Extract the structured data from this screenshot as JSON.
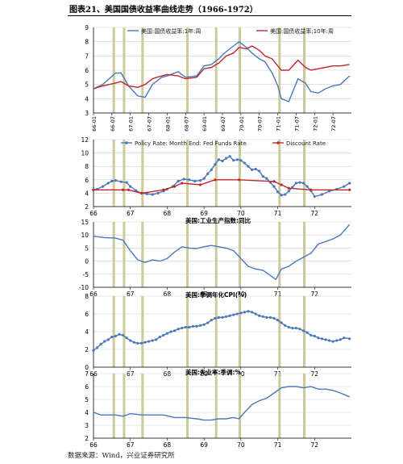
{
  "title": "图表21、美国国债收益率曲线走势（1966-1972）",
  "source": "数据来源：Wind，兴业证券研究所",
  "colors": {
    "blue": "#4a78b8",
    "red": "#c0272d",
    "band": "#c9c38f",
    "grid": "#cfcfcf"
  },
  "chart_data": [
    {
      "type": "line",
      "title": "",
      "ylim": [
        3,
        9
      ],
      "yticks": [
        "3",
        "4",
        "5",
        "6",
        "7",
        "8",
        "9"
      ],
      "xticks": [
        "66-01",
        "66-07",
        "67-01",
        "67-07",
        "68-01",
        "68-07",
        "69-01",
        "69-07",
        "70-01",
        "70-07",
        "71-01",
        "71-07",
        "72-01",
        "72-07"
      ],
      "legend": [
        "美国:国债收益率:1年:周",
        "美国:国债收益率:10年:周"
      ],
      "series": [
        {
          "name": "美国:国债收益率:1年:周",
          "color": "blue",
          "x": [
            1966.0,
            1966.25,
            1966.6,
            1966.75,
            1966.95,
            1967.2,
            1967.4,
            1967.6,
            1967.85,
            1968.0,
            1968.3,
            1968.5,
            1968.8,
            1969.0,
            1969.2,
            1969.4,
            1969.6,
            1969.8,
            1969.95,
            1970.15,
            1970.3,
            1970.5,
            1970.65,
            1970.85,
            1971.0,
            1971.1,
            1971.3,
            1971.55,
            1971.75,
            1971.9,
            1972.1,
            1972.3,
            1972.5,
            1972.7,
            1972.95
          ],
          "values": [
            4.7,
            5.0,
            5.8,
            5.8,
            4.9,
            4.2,
            4.1,
            5.0,
            5.5,
            5.6,
            5.9,
            5.5,
            5.6,
            6.3,
            6.4,
            6.8,
            7.3,
            7.7,
            8.0,
            7.6,
            7.2,
            6.8,
            6.6,
            5.8,
            4.9,
            4.0,
            3.8,
            5.4,
            5.1,
            4.5,
            4.4,
            4.7,
            4.9,
            5.0,
            5.6
          ]
        },
        {
          "name": "美国:国债收益率:10年:周",
          "color": "red",
          "x": [
            1966.0,
            1966.25,
            1966.6,
            1966.75,
            1966.95,
            1967.2,
            1967.4,
            1967.6,
            1967.85,
            1968.0,
            1968.3,
            1968.5,
            1968.8,
            1969.0,
            1969.2,
            1969.4,
            1969.6,
            1969.8,
            1969.95,
            1970.15,
            1970.3,
            1970.5,
            1970.65,
            1970.85,
            1971.0,
            1971.1,
            1971.3,
            1971.55,
            1971.75,
            1971.9,
            1972.1,
            1972.3,
            1972.5,
            1972.7,
            1972.95
          ],
          "values": [
            4.7,
            4.9,
            5.1,
            5.2,
            4.9,
            4.8,
            5.0,
            5.4,
            5.6,
            5.7,
            5.6,
            5.4,
            5.5,
            6.1,
            6.2,
            6.5,
            7.0,
            7.2,
            7.6,
            7.5,
            7.7,
            7.4,
            7.0,
            6.8,
            6.3,
            6.0,
            6.0,
            6.7,
            6.2,
            6.0,
            6.1,
            6.2,
            6.3,
            6.3,
            6.4
          ]
        }
      ]
    },
    {
      "type": "line",
      "title": "",
      "ylim": [
        2,
        12
      ],
      "yticks": [
        "2",
        "4",
        "6",
        "8",
        "10",
        "12"
      ],
      "xticks": [
        "66",
        "67",
        "68",
        "69",
        "70",
        "71",
        "72"
      ],
      "legend": [
        "Policy Rate: Month End: Fed Funds Rate",
        "Discount Rate"
      ],
      "series": [
        {
          "name": "Policy Rate: Month End: Fed Funds Rate",
          "color": "blue",
          "markers": true,
          "x": [
            1966.0,
            1966.1,
            1966.25,
            1966.4,
            1966.5,
            1966.6,
            1966.75,
            1966.9,
            1967.0,
            1967.15,
            1967.3,
            1967.45,
            1967.6,
            1967.75,
            1967.9,
            1968.0,
            1968.15,
            1968.3,
            1968.45,
            1968.6,
            1968.75,
            1968.9,
            1969.0,
            1969.1,
            1969.2,
            1969.3,
            1969.4,
            1969.5,
            1969.6,
            1969.7,
            1969.8,
            1969.9,
            1970.0,
            1970.1,
            1970.2,
            1970.3,
            1970.4,
            1970.5,
            1970.6,
            1970.7,
            1970.8,
            1970.9,
            1971.0,
            1971.1,
            1971.2,
            1971.3,
            1971.4,
            1971.5,
            1971.6,
            1971.7,
            1971.8,
            1971.9,
            1972.0,
            1972.2,
            1972.4,
            1972.6,
            1972.8,
            1972.95
          ],
          "values": [
            4.5,
            4.6,
            5.0,
            5.5,
            5.8,
            5.9,
            5.7,
            5.6,
            5.0,
            4.4,
            4.0,
            3.9,
            3.8,
            4.0,
            4.3,
            4.6,
            5.0,
            5.8,
            6.1,
            6.0,
            5.8,
            5.9,
            6.2,
            6.9,
            7.5,
            8.3,
            9.0,
            8.8,
            9.2,
            9.5,
            8.9,
            9.0,
            8.9,
            8.5,
            8.0,
            7.5,
            7.6,
            7.3,
            6.5,
            6.2,
            5.6,
            5.0,
            4.2,
            3.7,
            3.8,
            4.3,
            4.9,
            5.5,
            5.6,
            5.5,
            5.0,
            4.4,
            3.5,
            3.8,
            4.3,
            4.6,
            5.0,
            5.5
          ]
        },
        {
          "name": "Discount Rate",
          "color": "red",
          "markers": true,
          "x": [
            1966.0,
            1966.8,
            1966.95,
            1967.3,
            1967.9,
            1968.2,
            1968.4,
            1968.9,
            1969.3,
            1969.95,
            1970.9,
            1971.1,
            1971.3,
            1971.9,
            1972.95
          ],
          "values": [
            4.5,
            4.5,
            4.5,
            4.0,
            4.5,
            5.0,
            5.5,
            5.25,
            6.0,
            6.0,
            5.75,
            5.25,
            4.75,
            4.5,
            4.5
          ]
        }
      ]
    },
    {
      "type": "line",
      "title": "美国:工业生产指数:同比",
      "ylim": [
        -10,
        15
      ],
      "yticks": [
        "-10",
        "-5",
        "0",
        "5",
        "10",
        "15"
      ],
      "xticks": [
        "66",
        "67",
        "68",
        "69",
        "70",
        "71",
        "72"
      ],
      "series": [
        {
          "name": "美国:工业生产指数:同比",
          "color": "blue",
          "x": [
            1966.0,
            1966.3,
            1966.6,
            1966.8,
            1967.0,
            1967.2,
            1967.4,
            1967.6,
            1967.8,
            1968.0,
            1968.2,
            1968.4,
            1968.6,
            1968.8,
            1969.0,
            1969.2,
            1969.4,
            1969.6,
            1969.8,
            1970.0,
            1970.2,
            1970.4,
            1970.6,
            1970.8,
            1970.95,
            1971.1,
            1971.3,
            1971.5,
            1971.7,
            1971.9,
            1972.1,
            1972.3,
            1972.5,
            1972.7,
            1972.95
          ],
          "values": [
            9.5,
            9.0,
            8.8,
            8.0,
            4.0,
            0.5,
            -0.5,
            0.5,
            0.0,
            1.0,
            3.5,
            5.5,
            5.0,
            4.8,
            5.5,
            6.0,
            5.5,
            5.0,
            4.0,
            1.0,
            -2.0,
            -3.0,
            -3.5,
            -5.5,
            -7.0,
            -3.0,
            -2.0,
            0.0,
            1.5,
            3.0,
            6.5,
            7.5,
            8.5,
            10.0,
            14.0
          ]
        }
      ]
    },
    {
      "type": "line",
      "title": "美国:季调年化CPI(%)",
      "ylim": [
        0,
        8
      ],
      "yticks": [
        "0",
        "2",
        "4",
        "6",
        "8"
      ],
      "xticks": [
        "66",
        "67",
        "68",
        "69",
        "70",
        "71",
        "72"
      ],
      "series": [
        {
          "name": "美国:季调年化CPI(%)",
          "color": "blue",
          "markers": true,
          "x": [
            1966.0,
            1966.1,
            1966.2,
            1966.3,
            1966.4,
            1966.5,
            1966.6,
            1966.7,
            1966.8,
            1966.9,
            1967.0,
            1967.1,
            1967.2,
            1967.3,
            1967.4,
            1967.5,
            1967.6,
            1967.7,
            1967.8,
            1967.9,
            1968.0,
            1968.1,
            1968.2,
            1968.3,
            1968.4,
            1968.5,
            1968.6,
            1968.7,
            1968.8,
            1968.9,
            1969.0,
            1969.1,
            1969.2,
            1969.3,
            1969.4,
            1969.5,
            1969.6,
            1969.7,
            1969.8,
            1969.9,
            1970.0,
            1970.1,
            1970.2,
            1970.3,
            1970.4,
            1970.5,
            1970.6,
            1970.7,
            1970.8,
            1970.9,
            1971.0,
            1971.1,
            1971.2,
            1971.3,
            1971.4,
            1971.5,
            1971.6,
            1971.7,
            1971.8,
            1971.9,
            1972.0,
            1972.1,
            1972.2,
            1972.3,
            1972.4,
            1972.5,
            1972.6,
            1972.7,
            1972.8,
            1972.95
          ],
          "values": [
            1.9,
            2.2,
            2.6,
            2.9,
            3.1,
            3.4,
            3.5,
            3.7,
            3.6,
            3.3,
            3.0,
            2.8,
            2.7,
            2.7,
            2.8,
            2.9,
            3.0,
            3.1,
            3.4,
            3.6,
            3.8,
            4.0,
            4.1,
            4.3,
            4.4,
            4.5,
            4.5,
            4.6,
            4.6,
            4.7,
            4.8,
            5.0,
            5.3,
            5.5,
            5.6,
            5.6,
            5.7,
            5.8,
            5.9,
            6.0,
            6.1,
            6.2,
            6.3,
            6.2,
            6.0,
            5.8,
            5.7,
            5.6,
            5.6,
            5.5,
            5.3,
            5.0,
            4.7,
            4.5,
            4.4,
            4.4,
            4.3,
            4.1,
            3.9,
            3.6,
            3.5,
            3.3,
            3.2,
            3.1,
            3.0,
            2.9,
            3.0,
            3.1,
            3.3,
            3.2
          ]
        }
      ]
    },
    {
      "type": "line",
      "title": "美国:失业率:季调:%",
      "ylim": [
        2,
        7
      ],
      "yticks": [
        "2",
        "3",
        "4",
        "5",
        "6",
        "7"
      ],
      "xticks": [
        "66",
        "67",
        "68",
        "69",
        "70",
        "71",
        "72"
      ],
      "series": [
        {
          "name": "美国:失业率:季调:%",
          "color": "blue",
          "x": [
            1966.0,
            1966.2,
            1966.4,
            1966.6,
            1966.8,
            1967.0,
            1967.3,
            1967.6,
            1967.9,
            1968.2,
            1968.5,
            1968.8,
            1969.0,
            1969.2,
            1969.4,
            1969.6,
            1969.8,
            1969.95,
            1970.1,
            1970.3,
            1970.5,
            1970.7,
            1970.9,
            1971.1,
            1971.3,
            1971.5,
            1971.7,
            1971.9,
            1972.1,
            1972.3,
            1972.5,
            1972.7,
            1972.95
          ],
          "values": [
            4.0,
            3.8,
            3.8,
            3.8,
            3.7,
            3.9,
            3.8,
            3.8,
            3.8,
            3.6,
            3.6,
            3.5,
            3.4,
            3.4,
            3.5,
            3.5,
            3.6,
            3.5,
            4.0,
            4.6,
            4.9,
            5.1,
            5.5,
            5.9,
            6.0,
            6.0,
            5.9,
            6.0,
            5.8,
            5.8,
            5.7,
            5.5,
            5.2
          ]
        }
      ]
    }
  ]
}
